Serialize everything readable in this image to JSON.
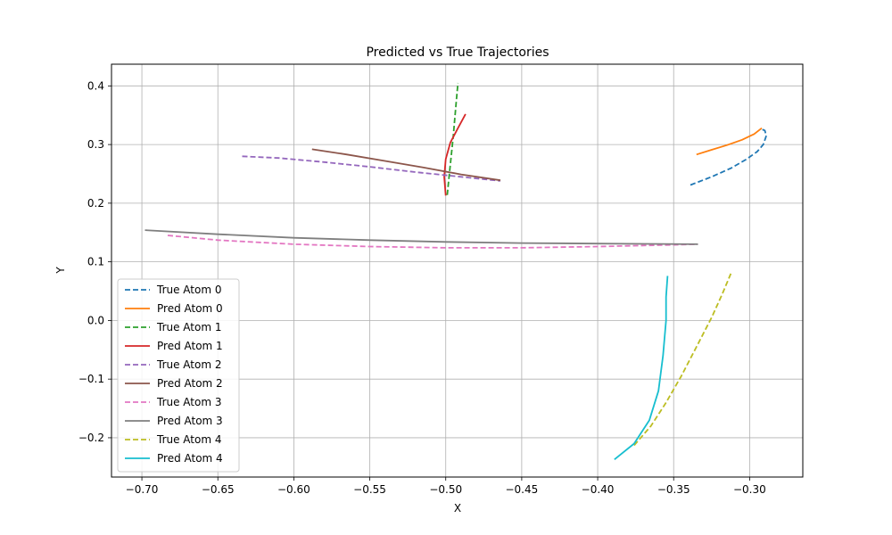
{
  "chart_data": {
    "type": "line",
    "title": "Predicted vs True Trajectories",
    "xlabel": "X",
    "ylabel": "Y",
    "xlim": [
      -0.72,
      -0.265
    ],
    "ylim": [
      -0.267,
      0.437
    ],
    "grid": true,
    "legend_position": "lower-left",
    "xticks": [
      -0.7,
      -0.65,
      -0.6,
      -0.55,
      -0.5,
      -0.45,
      -0.4,
      -0.35,
      -0.3
    ],
    "xtick_labels": [
      "−0.70",
      "−0.65",
      "−0.60",
      "−0.55",
      "−0.50",
      "−0.45",
      "−0.40",
      "−0.35",
      "−0.30"
    ],
    "yticks": [
      -0.2,
      -0.1,
      0.0,
      0.1,
      0.2,
      0.3,
      0.4
    ],
    "ytick_labels": [
      "−0.2",
      "−0.1",
      "0.0",
      "0.1",
      "0.2",
      "0.3",
      "0.4"
    ],
    "series": [
      {
        "name": "True Atom 0",
        "color": "#1f77b4",
        "style": "dashed",
        "x": [
          -0.339,
          -0.325,
          -0.312,
          -0.302,
          -0.295,
          -0.291,
          -0.289,
          -0.29,
          -0.293
        ],
        "y": [
          0.231,
          0.245,
          0.26,
          0.275,
          0.288,
          0.3,
          0.315,
          0.324,
          0.327
        ]
      },
      {
        "name": "Pred Atom 0",
        "color": "#ff7f0e",
        "style": "solid",
        "x": [
          -0.335,
          -0.325,
          -0.315,
          -0.305,
          -0.297,
          -0.292
        ],
        "y": [
          0.283,
          0.291,
          0.299,
          0.308,
          0.318,
          0.328
        ]
      },
      {
        "name": "True Atom 1",
        "color": "#2ca02c",
        "style": "dashed",
        "x": [
          -0.499,
          -0.498,
          -0.497,
          -0.496,
          -0.495,
          -0.494,
          -0.493,
          -0.492
        ],
        "y": [
          0.214,
          0.24,
          0.265,
          0.29,
          0.315,
          0.345,
          0.375,
          0.405
        ]
      },
      {
        "name": "Pred Atom 1",
        "color": "#d62728",
        "style": "solid",
        "x": [
          -0.5,
          -0.501,
          -0.5,
          -0.497,
          -0.492,
          -0.487
        ],
        "y": [
          0.213,
          0.245,
          0.275,
          0.303,
          0.328,
          0.352
        ]
      },
      {
        "name": "True Atom 2",
        "color": "#9467bd",
        "style": "dashed",
        "x": [
          -0.634,
          -0.61,
          -0.58,
          -0.55,
          -0.52,
          -0.49,
          -0.464
        ],
        "y": [
          0.28,
          0.277,
          0.27,
          0.262,
          0.253,
          0.245,
          0.238
        ]
      },
      {
        "name": "Pred Atom 2",
        "color": "#8c564b",
        "style": "solid",
        "x": [
          -0.588,
          -0.565,
          -0.54,
          -0.515,
          -0.49,
          -0.464
        ],
        "y": [
          0.292,
          0.283,
          0.272,
          0.261,
          0.249,
          0.239
        ]
      },
      {
        "name": "True Atom 3",
        "color": "#e377c2",
        "style": "dashed",
        "x": [
          -0.683,
          -0.65,
          -0.6,
          -0.55,
          -0.5,
          -0.45,
          -0.4,
          -0.35,
          -0.334
        ],
        "y": [
          0.145,
          0.137,
          0.13,
          0.126,
          0.124,
          0.124,
          0.126,
          0.129,
          0.13
        ]
      },
      {
        "name": "Pred Atom 3",
        "color": "#7f7f7f",
        "style": "solid",
        "x": [
          -0.698,
          -0.65,
          -0.6,
          -0.55,
          -0.5,
          -0.45,
          -0.4,
          -0.334
        ],
        "y": [
          0.154,
          0.147,
          0.141,
          0.137,
          0.134,
          0.132,
          0.131,
          0.13
        ]
      },
      {
        "name": "True Atom 4",
        "color": "#bcbd22",
        "style": "dashed",
        "x": [
          -0.376,
          -0.365,
          -0.355,
          -0.345,
          -0.335,
          -0.325,
          -0.318,
          -0.312
        ],
        "y": [
          -0.213,
          -0.18,
          -0.14,
          -0.095,
          -0.045,
          0.005,
          0.045,
          0.082
        ]
      },
      {
        "name": "Pred Atom 4",
        "color": "#17becf",
        "style": "solid",
        "x": [
          -0.389,
          -0.376,
          -0.366,
          -0.36,
          -0.357,
          -0.355,
          -0.355,
          -0.354
        ],
        "y": [
          -0.237,
          -0.21,
          -0.17,
          -0.12,
          -0.06,
          0.0,
          0.04,
          0.076
        ]
      }
    ]
  }
}
